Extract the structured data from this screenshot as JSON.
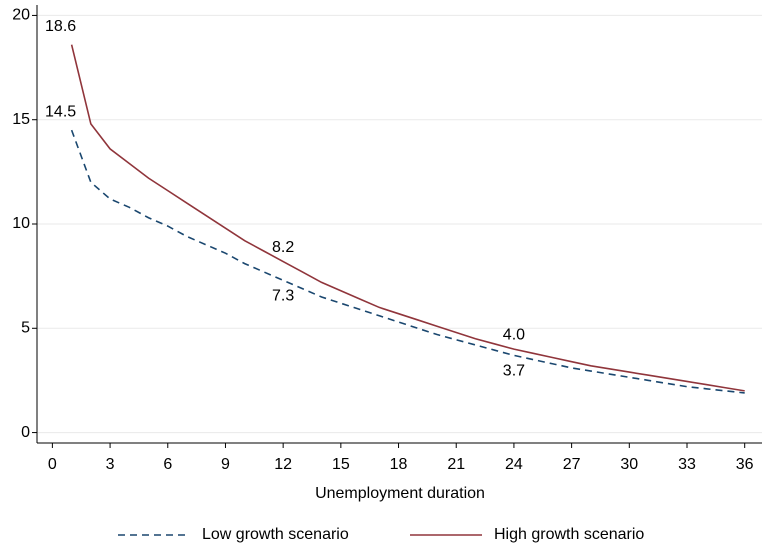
{
  "chart_data": {
    "type": "line",
    "x_label": "Unemployment duration",
    "x": [
      1,
      2,
      3,
      4,
      5,
      6,
      7,
      8,
      9,
      10,
      11,
      12,
      13,
      14,
      15,
      16,
      17,
      18,
      19,
      20,
      21,
      22,
      23,
      24,
      25,
      26,
      27,
      28,
      29,
      30,
      31,
      32,
      33,
      34,
      35,
      36
    ],
    "series": [
      {
        "name": "Low growth scenario",
        "color": "#1a476f",
        "dash": true,
        "values": [
          14.5,
          12.0,
          11.2,
          10.8,
          10.3,
          9.9,
          9.4,
          9.0,
          8.6,
          8.1,
          7.7,
          7.3,
          6.9,
          6.5,
          6.2,
          5.9,
          5.6,
          5.3,
          5.0,
          4.7,
          4.45,
          4.2,
          3.95,
          3.7,
          3.5,
          3.3,
          3.1,
          2.95,
          2.8,
          2.65,
          2.5,
          2.35,
          2.2,
          2.1,
          2.0,
          1.9
        ],
        "value_labels": [
          "14.5",
          null,
          null,
          null,
          null,
          null,
          null,
          null,
          null,
          null,
          null,
          "7.3",
          null,
          null,
          null,
          null,
          null,
          null,
          null,
          null,
          null,
          null,
          null,
          "3.7",
          null,
          null,
          null,
          null,
          null,
          null,
          null,
          null,
          null,
          null,
          null,
          null
        ]
      },
      {
        "name": "High growth scenario",
        "color": "#90353b",
        "dash": false,
        "values": [
          18.6,
          14.8,
          13.6,
          12.9,
          12.2,
          11.6,
          11.0,
          10.4,
          9.8,
          9.2,
          8.7,
          8.2,
          7.7,
          7.2,
          6.8,
          6.4,
          6.0,
          5.7,
          5.4,
          5.1,
          4.8,
          4.5,
          4.25,
          4.0,
          3.8,
          3.6,
          3.4,
          3.2,
          3.05,
          2.9,
          2.75,
          2.6,
          2.45,
          2.3,
          2.15,
          2.0
        ],
        "value_labels": [
          "18.6",
          null,
          null,
          null,
          null,
          null,
          null,
          null,
          null,
          null,
          null,
          "8.2",
          null,
          null,
          null,
          null,
          null,
          null,
          null,
          null,
          null,
          null,
          null,
          "4.0",
          null,
          null,
          null,
          null,
          null,
          null,
          null,
          null,
          null,
          null,
          null,
          null
        ]
      }
    ],
    "xlim": [
      -0.8,
      36.9
    ],
    "xticks": [
      0,
      3,
      6,
      9,
      12,
      15,
      18,
      21,
      24,
      27,
      30,
      33,
      36
    ],
    "ylim": [
      -0.5,
      20.5
    ],
    "yticks": [
      0,
      5,
      10,
      15,
      20
    ],
    "grid": true,
    "legend": "bottom"
  }
}
